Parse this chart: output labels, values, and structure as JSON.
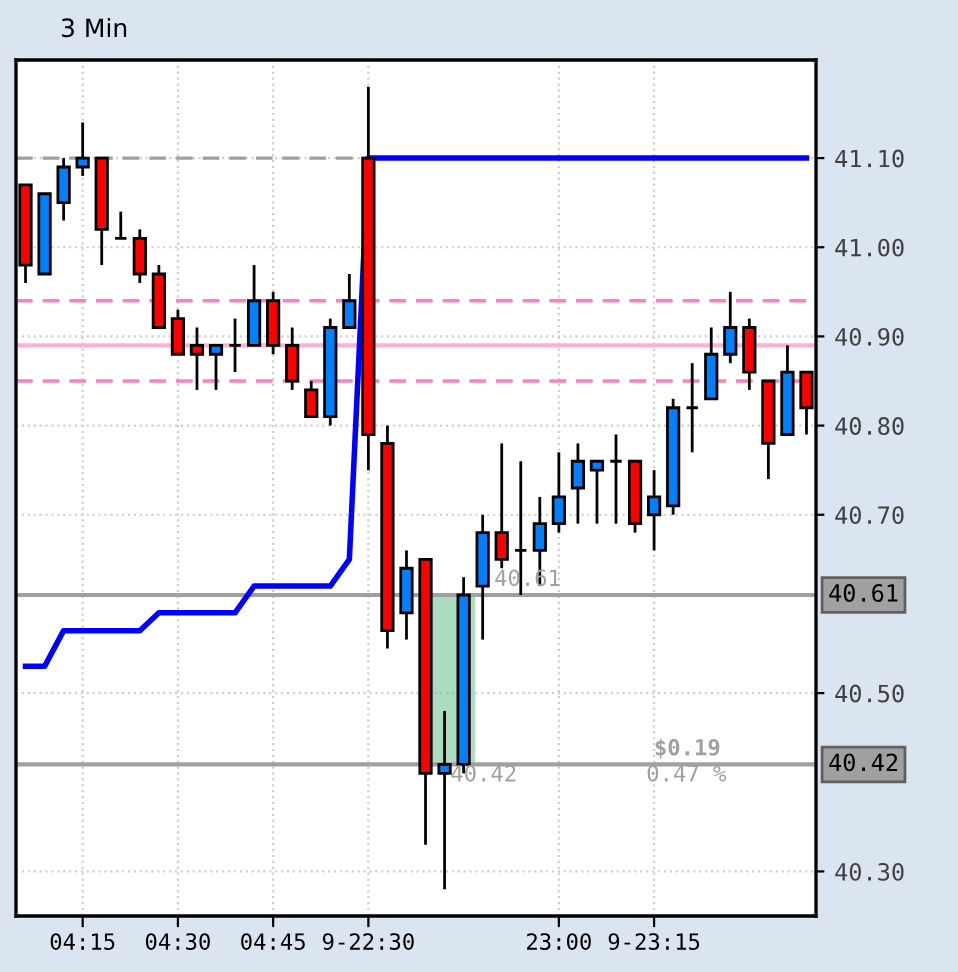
{
  "chart_data": {
    "type": "candlestick",
    "title": "3 Min",
    "categories": [
      null,
      null,
      null,
      "04:15",
      null,
      null,
      null,
      null,
      "04:30",
      null,
      null,
      null,
      null,
      "04:45",
      null,
      null,
      null,
      null,
      "9-22:30",
      null,
      null,
      null,
      null,
      null,
      null,
      null,
      null,
      null,
      "23:00",
      null,
      null,
      null,
      null,
      "9-23:15",
      null,
      null,
      null,
      null,
      null,
      null,
      null,
      null
    ],
    "ohlc": [
      [
        41.07,
        41.07,
        40.96,
        40.98
      ],
      [
        40.97,
        41.06,
        40.97,
        41.06
      ],
      [
        41.05,
        41.1,
        41.03,
        41.09
      ],
      [
        41.09,
        41.14,
        41.08,
        41.1
      ],
      [
        41.1,
        41.1,
        40.98,
        41.02
      ],
      [
        41.01,
        41.04,
        41.01,
        41.01
      ],
      [
        41.01,
        41.02,
        40.96,
        40.97
      ],
      [
        40.97,
        40.98,
        40.91,
        40.91
      ],
      [
        40.92,
        40.93,
        40.88,
        40.88
      ],
      [
        40.89,
        40.91,
        40.84,
        40.88
      ],
      [
        40.88,
        40.89,
        40.84,
        40.89
      ],
      [
        40.89,
        40.92,
        40.86,
        40.89
      ],
      [
        40.89,
        40.98,
        40.89,
        40.94
      ],
      [
        40.94,
        40.95,
        40.88,
        40.89
      ],
      [
        40.89,
        40.91,
        40.84,
        40.85
      ],
      [
        40.84,
        40.85,
        40.81,
        40.81
      ],
      [
        40.81,
        40.92,
        40.8,
        40.91
      ],
      [
        40.91,
        40.97,
        40.91,
        40.94
      ],
      [
        41.1,
        41.18,
        40.75,
        40.79
      ],
      [
        40.78,
        40.8,
        40.55,
        40.57
      ],
      [
        40.59,
        40.66,
        40.56,
        40.64
      ],
      [
        40.65,
        40.65,
        40.33,
        40.41
      ],
      [
        40.41,
        40.48,
        40.28,
        40.42
      ],
      [
        40.42,
        40.63,
        40.41,
        40.61
      ],
      [
        40.62,
        40.7,
        40.56,
        40.68
      ],
      [
        40.68,
        40.78,
        40.64,
        40.65
      ],
      [
        40.66,
        40.76,
        40.61,
        40.66
      ],
      [
        40.66,
        40.72,
        40.62,
        40.69
      ],
      [
        40.69,
        40.77,
        40.68,
        40.72
      ],
      [
        40.73,
        40.78,
        40.69,
        40.76
      ],
      [
        40.75,
        40.76,
        40.69,
        40.76
      ],
      [
        40.76,
        40.79,
        40.69,
        40.76
      ],
      [
        40.76,
        40.76,
        40.68,
        40.69
      ],
      [
        40.7,
        40.75,
        40.66,
        40.72
      ],
      [
        40.71,
        40.83,
        40.7,
        40.82
      ],
      [
        40.82,
        40.87,
        40.77,
        40.82
      ],
      [
        40.83,
        40.91,
        40.83,
        40.88
      ],
      [
        40.88,
        40.95,
        40.87,
        40.91
      ],
      [
        40.91,
        40.92,
        40.84,
        40.86
      ],
      [
        40.85,
        40.85,
        40.74,
        40.78
      ],
      [
        40.79,
        40.89,
        40.79,
        40.86
      ],
      [
        40.86,
        40.86,
        40.79,
        40.82
      ]
    ],
    "colors": [
      "#ff0000",
      "#0080ff",
      "#0080ff",
      "#0080ff",
      "#ff0000",
      "#000000",
      "#ff0000",
      "#ff0000",
      "#ff0000",
      "#ff0000",
      "#0080ff",
      "#000000",
      "#0080ff",
      "#ff0000",
      "#ff0000",
      "#ff0000",
      "#0080ff",
      "#0080ff",
      "#ff0000",
      "#ff0000",
      "#0080ff",
      "#ff0000",
      "#0080ff",
      "#0080ff",
      "#0080ff",
      "#ff0000",
      "#000000",
      "#0080ff",
      "#0080ff",
      "#0080ff",
      "#0080ff",
      "#000000",
      "#ff0000",
      "#0080ff",
      "#0080ff",
      "#000000",
      "#0080ff",
      "#0080ff",
      "#ff0000",
      "#ff0000",
      "#0080ff",
      "#ff0000"
    ],
    "series": [
      {
        "type": "line",
        "color": "#0000ff",
        "values": [
          40.53,
          40.53,
          40.57,
          40.57,
          40.57,
          40.57,
          40.57,
          40.59,
          40.59,
          40.59,
          40.59,
          40.59,
          40.62,
          40.62,
          40.62,
          40.62,
          40.62,
          40.65,
          41.1,
          41.1,
          41.1,
          41.1,
          41.1,
          41.1,
          41.1,
          41.1,
          41.1,
          41.1,
          41.1,
          41.1,
          41.1,
          41.1,
          41.1,
          41.1,
          41.1,
          41.1,
          41.1,
          41.1,
          41.1,
          41.1,
          41.1,
          41.1
        ]
      }
    ],
    "ylim": [
      40.25,
      41.21
    ],
    "yticks": [
      {
        "value": 40.3,
        "label": "40.30"
      },
      {
        "value": 40.5,
        "label": "40.50"
      },
      {
        "value": 40.7,
        "label": "40.70"
      },
      {
        "value": 40.8,
        "label": "40.80"
      },
      {
        "value": 40.9,
        "label": "40.90"
      },
      {
        "value": 41.0,
        "label": "41.00"
      },
      {
        "value": 41.1,
        "label": "41.10"
      }
    ],
    "grid": true,
    "ref_lines": [
      {
        "axis": "y",
        "value": 41.1,
        "color": "#a0a0a0",
        "line_style": "dashed"
      },
      {
        "axis": "y",
        "value": 40.94,
        "color": "#ff80c0",
        "line_style": "dashed"
      },
      {
        "axis": "y",
        "value": 40.89,
        "color": "#ffb0d8",
        "line_style": "solid"
      },
      {
        "axis": "y",
        "value": 40.85,
        "color": "#ff80c0",
        "line_style": "dashed"
      },
      {
        "axis": "y",
        "value": 40.61,
        "color": "#a0a0a0",
        "line_style": "solid",
        "label": "40.61"
      },
      {
        "axis": "y",
        "value": 40.42,
        "color": "#a0a0a0",
        "line_style": "solid",
        "label": "40.42"
      }
    ],
    "annotations": [
      {
        "text": "40.61",
        "y": 40.61
      },
      {
        "text": "40.42",
        "y": 40.42
      },
      "$0.19",
      "0.47 %"
    ]
  }
}
